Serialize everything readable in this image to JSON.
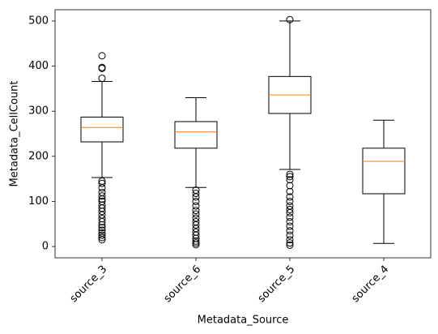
{
  "chart_data": {
    "type": "box",
    "x_label": "Metadata_Source",
    "y_label": "Metadata_CellCount",
    "categories": [
      "source_3",
      "source_6",
      "source_5",
      "source_4"
    ],
    "boxes": [
      {
        "whislo": 153,
        "q1": 232,
        "med": 264,
        "q3": 287,
        "whishi": 366,
        "fliers": [
          373,
          395,
          397,
          423,
          145,
          140,
          130,
          120,
          112,
          105,
          100,
          92,
          85,
          78,
          70,
          62,
          55,
          48,
          42,
          36,
          30,
          25,
          20,
          15
        ]
      },
      {
        "whislo": 131,
        "q1": 218,
        "med": 254,
        "q3": 277,
        "whishi": 330,
        "fliers": [
          125,
          118,
          110,
          100,
          90,
          80,
          72,
          63,
          55,
          48,
          40,
          32,
          25,
          18,
          12,
          8,
          4
        ]
      },
      {
        "whislo": 171,
        "q1": 295,
        "med": 336,
        "q3": 377,
        "whishi": 500,
        "fliers": [
          503,
          160,
          155,
          148,
          135,
          122,
          110,
          100,
          90,
          82,
          75,
          65,
          55,
          45,
          35,
          25,
          15,
          8,
          3
        ]
      },
      {
        "whislo": 7,
        "q1": 117,
        "med": 189,
        "q3": 218,
        "whishi": 280,
        "fliers": []
      }
    ],
    "box_color": "#000000",
    "median_color": "#ff7f0e",
    "ylim": [
      -25,
      525
    ],
    "yticks": [
      0,
      100,
      200,
      300,
      400,
      500
    ]
  }
}
